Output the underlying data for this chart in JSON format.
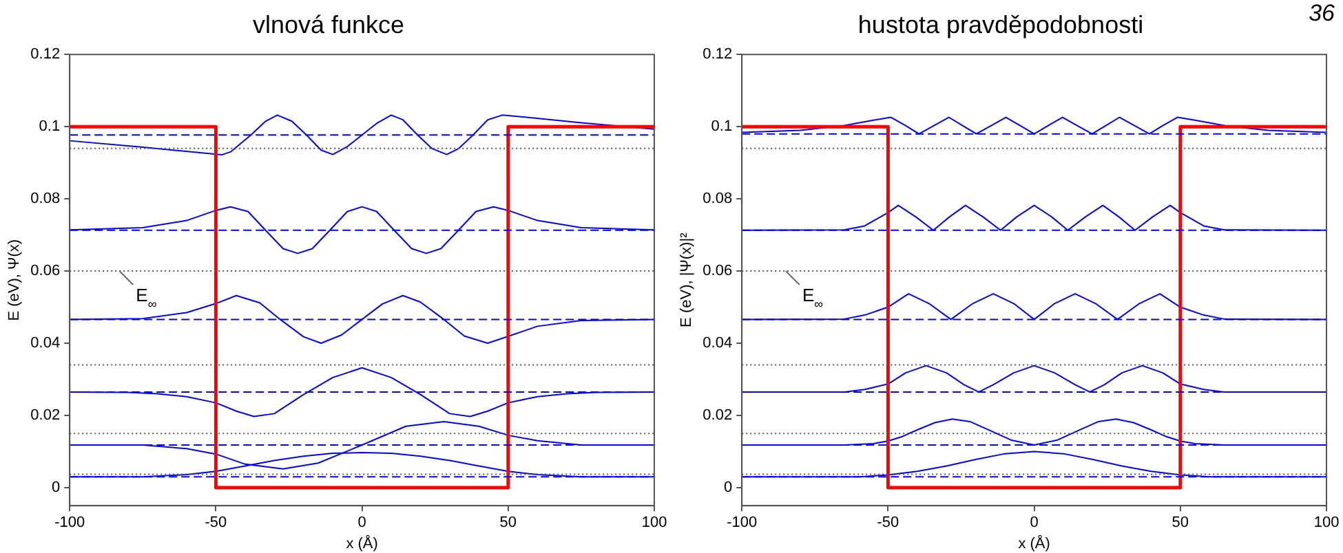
{
  "chart_data": [
    {
      "type": "line",
      "title": "vlnová funkce",
      "xlabel": "x (Å)",
      "ylabel": "E (eV), Ψ(x)",
      "xlim": [
        -100,
        100
      ],
      "ylim": [
        -0.005,
        0.12
      ],
      "xticks": [
        -100,
        -50,
        0,
        50,
        100
      ],
      "yticks": [
        0,
        0.02,
        0.04,
        0.06,
        0.08,
        0.1,
        0.12
      ],
      "series": [
        {
          "x": [
            -100,
            -50,
            -50,
            50,
            50,
            100
          ],
          "values": [
            0.1,
            0.1,
            0,
            0,
            0.1,
            0.1
          ],
          "color": "#ff0000"
        },
        {
          "x": [
            -100,
            -75,
            -60,
            -50,
            -40,
            -30,
            -20,
            -10,
            0,
            10,
            20,
            30,
            40,
            50,
            60,
            75,
            100
          ],
          "values": [
            0.003,
            0.003,
            0.0036,
            0.0045,
            0.006,
            0.0075,
            0.0087,
            0.0095,
            0.0097,
            0.0095,
            0.0087,
            0.0075,
            0.006,
            0.0045,
            0.0036,
            0.003,
            0.003
          ],
          "color": "#0000ff"
        },
        {
          "x": [
            -100,
            -75,
            -60,
            -50,
            -40,
            -27,
            -15,
            0,
            15,
            28,
            40,
            50,
            60,
            75,
            100
          ],
          "values": [
            0.0118,
            0.0118,
            0.0108,
            0.0093,
            0.0065,
            0.0052,
            0.0068,
            0.0118,
            0.017,
            0.0183,
            0.017,
            0.0145,
            0.013,
            0.0118,
            0.0118
          ],
          "color": "#0000ff"
        },
        {
          "x": [
            -100,
            -80,
            -70,
            -60,
            -50,
            -43,
            -37,
            -30,
            -20,
            -10,
            0,
            10,
            20,
            30,
            37,
            43,
            50,
            60,
            70,
            80,
            100
          ],
          "values": [
            0.0265,
            0.0264,
            0.026,
            0.0252,
            0.0235,
            0.0212,
            0.0197,
            0.0205,
            0.0258,
            0.0305,
            0.0332,
            0.0305,
            0.0258,
            0.0205,
            0.0197,
            0.0212,
            0.0235,
            0.0252,
            0.026,
            0.0264,
            0.0265
          ],
          "color": "#0000ff"
        },
        {
          "x": [
            -100,
            -75,
            -60,
            -50,
            -43,
            -35,
            -28,
            -20,
            -14,
            -7,
            0,
            7,
            14,
            20,
            28,
            35,
            43,
            50,
            60,
            75,
            100
          ],
          "values": [
            0.0466,
            0.0468,
            0.0485,
            0.051,
            0.0532,
            0.0512,
            0.0466,
            0.0418,
            0.04,
            0.0423,
            0.0466,
            0.0509,
            0.0532,
            0.0514,
            0.0466,
            0.042,
            0.04,
            0.0419,
            0.0447,
            0.0463,
            0.0466
          ],
          "color": "#0000ff"
        },
        {
          "x": [
            -100,
            -75,
            -60,
            -50,
            -45,
            -39,
            -33,
            -27,
            -22,
            -17,
            -11,
            -5,
            0,
            5,
            11,
            17,
            22,
            27,
            33,
            39,
            45,
            50,
            60,
            75,
            100
          ],
          "values": [
            0.0714,
            0.072,
            0.074,
            0.0768,
            0.0778,
            0.0765,
            0.0713,
            0.0662,
            0.0649,
            0.0662,
            0.0713,
            0.0765,
            0.0778,
            0.0765,
            0.0713,
            0.0662,
            0.0649,
            0.0662,
            0.0713,
            0.0765,
            0.0778,
            0.0768,
            0.074,
            0.072,
            0.0714
          ],
          "color": "#0000ff"
        },
        {
          "x": [
            -100,
            -75,
            -48,
            -45,
            -38,
            -33,
            -29,
            -24,
            -19,
            -14,
            -10,
            -5,
            0,
            5,
            10,
            14,
            19,
            24,
            29,
            33,
            38,
            43,
            48,
            50,
            75,
            100
          ],
          "values": [
            0.0961,
            0.0943,
            0.0922,
            0.093,
            0.0977,
            0.1015,
            0.1032,
            0.1015,
            0.0977,
            0.0935,
            0.0923,
            0.0945,
            0.0977,
            0.1009,
            0.1032,
            0.1019,
            0.0977,
            0.0939,
            0.0923,
            0.0939,
            0.0977,
            0.1019,
            0.1032,
            0.1031,
            0.1011,
            0.0993
          ],
          "color": "#0000ff"
        }
      ],
      "ref_lines": [
        {
          "axis": "y",
          "value": 0.003,
          "color": "#0000ff",
          "line_style": "dashed"
        },
        {
          "axis": "y",
          "value": 0.0118,
          "color": "#0000ff",
          "line_style": "dashed"
        },
        {
          "axis": "y",
          "value": 0.0265,
          "color": "#0000ff",
          "line_style": "dashed"
        },
        {
          "axis": "y",
          "value": 0.0466,
          "color": "#0000ff",
          "line_style": "dashed"
        },
        {
          "axis": "y",
          "value": 0.0713,
          "color": "#0000ff",
          "line_style": "dashed"
        },
        {
          "axis": "y",
          "value": 0.0977,
          "color": "#0000ff",
          "line_style": "dashed"
        },
        {
          "axis": "y",
          "value": 0.0037,
          "color": "#555555",
          "line_style": "dotted"
        },
        {
          "axis": "y",
          "value": 0.015,
          "color": "#555555",
          "line_style": "dotted"
        },
        {
          "axis": "y",
          "value": 0.034,
          "color": "#555555",
          "line_style": "dotted"
        },
        {
          "axis": "y",
          "value": 0.06,
          "color": "#555555",
          "line_style": "dotted"
        },
        {
          "axis": "y",
          "value": 0.094,
          "color": "#555555",
          "line_style": "dotted"
        }
      ],
      "annotations": [
        {
          "text": "E$_{∞}$",
          "x": -83,
          "y": 0.06
        }
      ]
    },
    {
      "type": "line",
      "title": "hustota pravděpodobnosti",
      "xlabel": "x (Å)",
      "ylabel": "E (eV), |Ψ(x)|²",
      "xlim": [
        -100,
        100
      ],
      "ylim": [
        -0.005,
        0.12
      ],
      "xticks": [
        -100,
        -50,
        0,
        50,
        100
      ],
      "yticks": [
        0,
        0.02,
        0.04,
        0.06,
        0.08,
        0.1,
        0.12
      ],
      "series": [
        {
          "x": [
            -100,
            -50,
            -50,
            50,
            50,
            100
          ],
          "values": [
            0.1,
            0.1,
            0,
            0,
            0.1,
            0.1
          ],
          "color": "#ff0000"
        },
        {
          "x": [
            -100,
            -60,
            -50,
            -40,
            -30,
            -20,
            -10,
            0,
            10,
            20,
            30,
            40,
            50,
            60,
            100
          ],
          "values": [
            0.003,
            0.003,
            0.0035,
            0.0045,
            0.006,
            0.0078,
            0.0094,
            0.01,
            0.0094,
            0.0078,
            0.006,
            0.0045,
            0.0035,
            0.003,
            0.003
          ],
          "color": "#0000ff"
        },
        {
          "x": [
            -100,
            -65,
            -55,
            -50,
            -45,
            -40,
            -34,
            -28,
            -22,
            -15,
            -8,
            0,
            8,
            15,
            22,
            28,
            34,
            40,
            45,
            50,
            55,
            65,
            100
          ],
          "values": [
            0.0118,
            0.0118,
            0.0122,
            0.0129,
            0.0142,
            0.016,
            0.018,
            0.019,
            0.0183,
            0.0158,
            0.0132,
            0.0118,
            0.0132,
            0.0158,
            0.0183,
            0.019,
            0.018,
            0.016,
            0.0142,
            0.0129,
            0.0122,
            0.0118,
            0.0118
          ],
          "color": "#0000ff"
        },
        {
          "x": [
            -100,
            -65,
            -58,
            -50,
            -44,
            -37,
            -30,
            -24,
            -19,
            -14,
            -7,
            0,
            7,
            14,
            19,
            24,
            30,
            37,
            44,
            50,
            58,
            65,
            100
          ],
          "values": [
            0.0265,
            0.0265,
            0.0272,
            0.0287,
            0.0318,
            0.0338,
            0.0318,
            0.0285,
            0.0265,
            0.0285,
            0.0318,
            0.0338,
            0.0318,
            0.0285,
            0.0265,
            0.0285,
            0.0318,
            0.0338,
            0.0318,
            0.0287,
            0.0272,
            0.0265,
            0.0265
          ],
          "color": "#0000ff"
        },
        {
          "x": [
            -100,
            -65,
            -58,
            -50,
            -43,
            -36,
            -28.5,
            -21,
            -14,
            -7,
            0,
            7,
            14,
            21,
            28.5,
            36,
            43,
            50,
            58,
            65,
            100
          ],
          "values": [
            0.0466,
            0.0467,
            0.0478,
            0.05,
            0.0537,
            0.051,
            0.0466,
            0.051,
            0.0537,
            0.051,
            0.0466,
            0.051,
            0.0537,
            0.051,
            0.0466,
            0.051,
            0.0537,
            0.05,
            0.0478,
            0.0467,
            0.0466
          ],
          "color": "#0000ff"
        },
        {
          "x": [
            -100,
            -65,
            -58,
            -50,
            -46.5,
            -40.5,
            -34.5,
            -29,
            -23.5,
            -17.5,
            -11.5,
            -6,
            0,
            6,
            11.5,
            17.5,
            23.5,
            29,
            34.5,
            40.5,
            46.5,
            50,
            58,
            65,
            100
          ],
          "values": [
            0.0713,
            0.0714,
            0.0725,
            0.0762,
            0.0782,
            0.075,
            0.0713,
            0.075,
            0.0782,
            0.075,
            0.0713,
            0.075,
            0.0782,
            0.075,
            0.0713,
            0.075,
            0.0782,
            0.075,
            0.0713,
            0.075,
            0.0782,
            0.0762,
            0.0725,
            0.0714,
            0.0713
          ],
          "color": "#0000ff"
        },
        {
          "x": [
            -100,
            -80,
            -65,
            -55,
            -49,
            -44,
            -39.4,
            -34.3,
            -29.2,
            -24.5,
            -19.8,
            -14.7,
            -9.7,
            -4.8,
            0,
            4.8,
            9.7,
            14.7,
            19.8,
            24.5,
            29.2,
            34.3,
            39.4,
            44,
            49,
            55,
            65,
            80,
            100
          ],
          "values": [
            0.0984,
            0.099,
            0.1003,
            0.1018,
            0.1026,
            0.1003,
            0.098,
            0.1003,
            0.1026,
            0.1003,
            0.098,
            0.1003,
            0.1026,
            0.1003,
            0.098,
            0.1003,
            0.1026,
            0.1003,
            0.098,
            0.1003,
            0.1026,
            0.1003,
            0.098,
            0.1003,
            0.1026,
            0.1018,
            0.1003,
            0.099,
            0.0984
          ],
          "color": "#0000ff"
        }
      ],
      "ref_lines": [
        {
          "axis": "y",
          "value": 0.003,
          "color": "#0000ff",
          "line_style": "dashed"
        },
        {
          "axis": "y",
          "value": 0.0118,
          "color": "#0000ff",
          "line_style": "dashed"
        },
        {
          "axis": "y",
          "value": 0.0265,
          "color": "#0000ff",
          "line_style": "dashed"
        },
        {
          "axis": "y",
          "value": 0.0466,
          "color": "#0000ff",
          "line_style": "dashed"
        },
        {
          "axis": "y",
          "value": 0.0713,
          "color": "#0000ff",
          "line_style": "dashed"
        },
        {
          "axis": "y",
          "value": 0.098,
          "color": "#0000ff",
          "line_style": "dashed"
        },
        {
          "axis": "y",
          "value": 0.0037,
          "color": "#555555",
          "line_style": "dotted"
        },
        {
          "axis": "y",
          "value": 0.015,
          "color": "#555555",
          "line_style": "dotted"
        },
        {
          "axis": "y",
          "value": 0.034,
          "color": "#555555",
          "line_style": "dotted"
        },
        {
          "axis": "y",
          "value": 0.06,
          "color": "#555555",
          "line_style": "dotted"
        },
        {
          "axis": "y",
          "value": 0.094,
          "color": "#555555",
          "line_style": "dotted"
        }
      ],
      "annotations": [
        {
          "text": "E$_{∞}$",
          "x": -85,
          "y": 0.06
        },
        "36"
      ]
    }
  ]
}
